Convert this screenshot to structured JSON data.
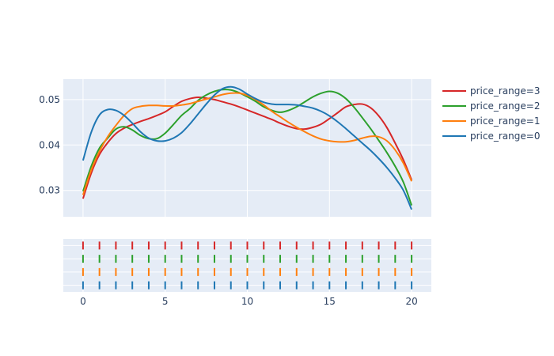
{
  "chart_data": {
    "type": "line",
    "title": "",
    "xlabel": "",
    "ylabel": "",
    "xlim": [
      -1.2,
      21.2
    ],
    "ylim": [
      0.0242,
      0.0545
    ],
    "x_ticks": [
      0,
      5,
      10,
      15,
      20
    ],
    "y_ticks": [
      0.03,
      0.04,
      0.05
    ],
    "y_tick_labels": [
      "0.03",
      "0.04",
      "0.05"
    ],
    "grid": true,
    "legend_position": "right",
    "rug_x": [
      0,
      1,
      2,
      3,
      4,
      5,
      6,
      7,
      8,
      9,
      10,
      11,
      12,
      13,
      14,
      15,
      16,
      17,
      18,
      19,
      20
    ],
    "series": [
      {
        "name": "price_range=3",
        "color": "#d62728",
        "x": [
          0,
          0.5,
          1,
          1.5,
          2,
          2.5,
          3,
          3.5,
          4,
          4.5,
          5,
          5.5,
          6,
          6.5,
          7,
          7.5,
          8,
          8.5,
          9,
          9.5,
          10,
          10.5,
          11,
          11.5,
          12,
          12.5,
          13,
          13.5,
          14,
          14.5,
          15,
          15.5,
          16,
          16.5,
          17,
          17.5,
          18,
          18.5,
          19,
          19.5,
          20
        ],
        "y": [
          0.0282,
          0.0338,
          0.0379,
          0.0405,
          0.0425,
          0.0437,
          0.0445,
          0.0452,
          0.0458,
          0.0465,
          0.0473,
          0.0485,
          0.0496,
          0.0502,
          0.0505,
          0.0503,
          0.05,
          0.0495,
          0.049,
          0.0484,
          0.0477,
          0.047,
          0.0463,
          0.0456,
          0.0448,
          0.0441,
          0.0436,
          0.0435,
          0.0439,
          0.0446,
          0.0458,
          0.0471,
          0.0484,
          0.0489,
          0.049,
          0.0482,
          0.0464,
          0.0438,
          0.0404,
          0.0367,
          0.0323
        ]
      },
      {
        "name": "price_range=2",
        "color": "#2ca02c",
        "x": [
          0,
          0.5,
          1,
          1.5,
          2,
          2.5,
          3,
          3.5,
          4,
          4.5,
          5,
          5.5,
          6,
          6.5,
          7,
          7.5,
          8,
          8.5,
          9,
          9.5,
          10,
          10.5,
          11,
          11.5,
          12,
          12.5,
          13,
          13.5,
          14,
          14.5,
          15,
          15.5,
          16,
          16.5,
          17,
          17.5,
          18,
          18.5,
          19,
          19.5,
          20
        ],
        "y": [
          0.0298,
          0.0353,
          0.0393,
          0.0415,
          0.0435,
          0.044,
          0.0433,
          0.0421,
          0.0414,
          0.0414,
          0.0426,
          0.0445,
          0.0465,
          0.048,
          0.0498,
          0.051,
          0.0518,
          0.0522,
          0.0521,
          0.0515,
          0.0506,
          0.0496,
          0.0484,
          0.0476,
          0.0472,
          0.0476,
          0.0484,
          0.0495,
          0.0506,
          0.0514,
          0.0518,
          0.0514,
          0.0502,
          0.0483,
          0.046,
          0.0436,
          0.041,
          0.0383,
          0.0353,
          0.0318,
          0.0267
        ]
      },
      {
        "name": "price_range=1",
        "color": "#ff7f0e",
        "x": [
          0,
          0.5,
          1,
          1.5,
          2,
          2.5,
          3,
          3.5,
          4,
          4.5,
          5,
          5.5,
          6,
          6.5,
          7,
          7.5,
          8,
          8.5,
          9,
          9.5,
          10,
          10.5,
          11,
          11.5,
          12,
          12.5,
          13,
          13.5,
          14,
          14.5,
          15,
          15.5,
          16,
          16.5,
          17,
          17.5,
          18,
          18.5,
          19,
          19.5,
          20
        ],
        "y": [
          0.029,
          0.0345,
          0.0386,
          0.0418,
          0.0443,
          0.0465,
          0.048,
          0.0485,
          0.0487,
          0.0487,
          0.0486,
          0.0486,
          0.0488,
          0.0491,
          0.0496,
          0.0501,
          0.0506,
          0.0511,
          0.0514,
          0.0514,
          0.0509,
          0.05,
          0.0488,
          0.0474,
          0.0462,
          0.045,
          0.0439,
          0.0429,
          0.042,
          0.0413,
          0.0409,
          0.0407,
          0.0407,
          0.041,
          0.0415,
          0.0419,
          0.0418,
          0.0409,
          0.0389,
          0.036,
          0.032
        ]
      },
      {
        "name": "price_range=0",
        "color": "#1f77b4",
        "x": [
          0,
          0.5,
          1,
          1.5,
          2,
          2.5,
          3,
          3.5,
          4,
          4.5,
          5,
          5.5,
          6,
          6.5,
          7,
          7.5,
          8,
          8.5,
          9,
          9.5,
          10,
          10.5,
          11,
          11.5,
          12,
          12.5,
          13,
          13.5,
          14,
          14.5,
          15,
          15.5,
          16,
          16.5,
          17,
          17.5,
          18,
          18.5,
          19,
          19.5,
          20
        ],
        "y": [
          0.0366,
          0.0428,
          0.0466,
          0.0478,
          0.0476,
          0.0465,
          0.0448,
          0.0429,
          0.0415,
          0.0409,
          0.0409,
          0.0415,
          0.0427,
          0.0446,
          0.0468,
          0.049,
          0.051,
          0.0524,
          0.0528,
          0.0523,
          0.0512,
          0.0502,
          0.0494,
          0.049,
          0.0489,
          0.0489,
          0.0488,
          0.0485,
          0.0481,
          0.0474,
          0.0464,
          0.0451,
          0.0436,
          0.042,
          0.0404,
          0.0388,
          0.037,
          0.035,
          0.0327,
          0.03,
          0.0258
        ]
      }
    ]
  }
}
